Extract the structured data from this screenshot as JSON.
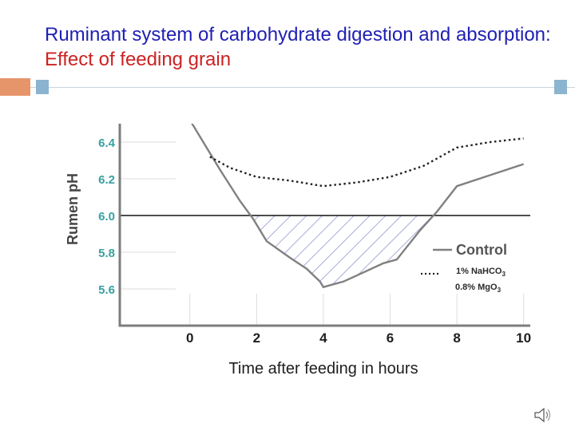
{
  "slide": {
    "title_part1": "Ruminant system of carbohydrate digestion and absorption:  ",
    "title_part2": "Effect of feeding grain",
    "title_color": "#1f1fb4",
    "accent_color": "#cc2222",
    "decor_square_colors": [
      "#e6956a",
      "#8ab4cf"
    ],
    "audio_icon": "speaker-icon"
  },
  "chart_data": {
    "type": "line",
    "title": "",
    "xlabel": "Time after feeding in hours",
    "ylabel": "Rumen pH",
    "x_ticks": [
      0,
      2,
      4,
      6,
      8,
      10
    ],
    "y_ticks": [
      "5.6",
      "5.8",
      "6.0",
      "6.2",
      "6.4"
    ],
    "xlim": [
      -2.1,
      10.2
    ],
    "ylim": [
      5.4,
      6.5
    ],
    "threshold": 6.0,
    "series": [
      {
        "name": "Control",
        "style": "solid",
        "color": "#808080",
        "x": [
          0,
          0.9,
          1.5,
          1.9,
          2.3,
          3.0,
          3.5,
          3.9,
          4.0,
          4.6,
          5.2,
          5.8,
          6.2,
          6.9,
          7.4,
          8.0,
          9.0,
          10.0
        ],
        "y": [
          6.52,
          6.25,
          6.08,
          5.98,
          5.86,
          5.77,
          5.71,
          5.64,
          5.61,
          5.64,
          5.69,
          5.74,
          5.76,
          5.92,
          6.02,
          6.16,
          6.22,
          6.28
        ]
      },
      {
        "name": "1% NaHCO3 / 0.8% MgO3",
        "style": "dotted",
        "color": "#222222",
        "x": [
          0.6,
          1.2,
          2.0,
          3.0,
          4.0,
          5.0,
          6.0,
          7.0,
          8.0,
          9.0,
          10.0
        ],
        "y": [
          6.32,
          6.26,
          6.21,
          6.19,
          6.16,
          6.18,
          6.21,
          6.27,
          6.37,
          6.4,
          6.42
        ]
      }
    ],
    "shaded_region": {
      "x_from": 1.9,
      "x_to": 7.3,
      "below": 6.0,
      "hatch_color": "#8f97d6"
    },
    "legend": {
      "position": "bottom-right",
      "control_label": "Control",
      "additive_line1_prefix": "1% NaHCO",
      "additive_line1_sub": "3",
      "additive_line2_prefix": "0.8% MgO",
      "additive_line2_sub": "3"
    }
  }
}
